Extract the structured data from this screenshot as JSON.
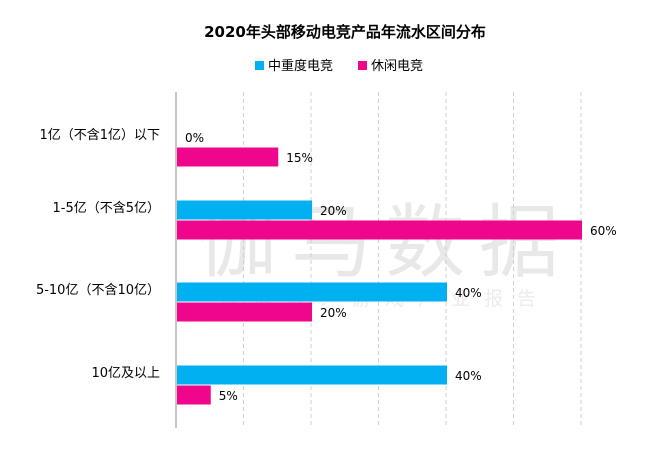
{
  "chart_data": {
    "type": "bar",
    "orientation": "horizontal",
    "title": "2020年头部移动电竞产品年流水区间分布",
    "categories": [
      "1亿（不含1亿）以下",
      "1-5亿（不含5亿）",
      "5-10亿（不含10亿）",
      "10亿及以上"
    ],
    "series": [
      {
        "name": "中重度电竞",
        "color": "#00b0f0",
        "values": [
          0,
          20,
          40,
          40
        ],
        "labels": [
          "0%",
          "20%",
          "40%",
          "40%"
        ]
      },
      {
        "name": "休闲电竞",
        "color": "#f0068c",
        "values": [
          15,
          60,
          20,
          5
        ],
        "labels": [
          "15%",
          "60%",
          "20%",
          "5%"
        ]
      }
    ],
    "xlim": [
      0,
      60
    ],
    "grid": "vertical dashed",
    "legend": "top-center",
    "watermark": {
      "main": "伽马数据",
      "sub": "微信号：游戏产业报告"
    }
  }
}
